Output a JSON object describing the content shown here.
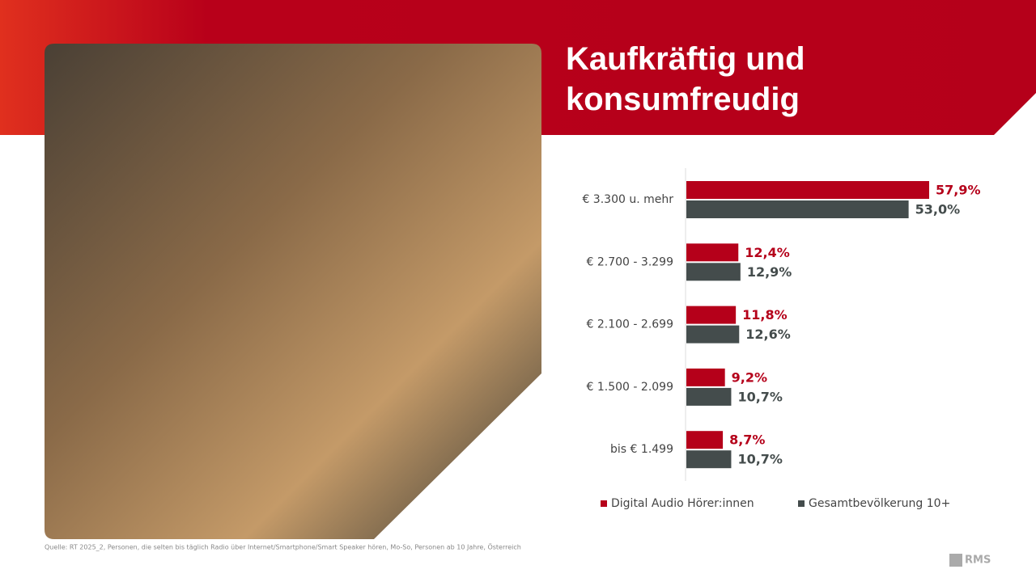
{
  "chart_data": {
    "type": "bar",
    "orientation": "horizontal",
    "title": "Kaufkräftig und konsumfreudig",
    "categories": [
      "€ 3.300 u. mehr",
      "€ 2.700 - 3.299",
      "€ 2.100 - 2.699",
      "€ 1.500 - 2.099",
      "bis € 1.499"
    ],
    "series": [
      {
        "name": "Digital Audio Hörer:innen",
        "color": "#b5001a",
        "values": [
          57.9,
          12.4,
          11.8,
          9.2,
          8.7
        ],
        "value_labels": [
          "57,9%",
          "12,4%",
          "11,8%",
          "9,2%",
          "8,7%"
        ]
      },
      {
        "name": "Gesamtbevölkerung 10+",
        "color": "#444c4c",
        "values": [
          53.0,
          12.9,
          12.6,
          10.7,
          10.7
        ],
        "value_labels": [
          "53,0%",
          "12,9%",
          "12,6%",
          "10,7%",
          "10,7%"
        ]
      }
    ],
    "source": "Quelle: RT 2025_2, Personen, die selten bis täglich Radio über Internet/Smartphone/Smart Speaker hören, Mo-So, Personen ab 10 Jahre, Österreich",
    "logo": "RMS"
  }
}
